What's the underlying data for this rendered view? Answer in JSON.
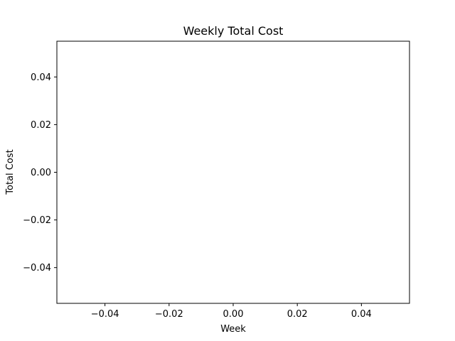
{
  "chart_data": {
    "type": "line",
    "title": "Weekly Total Cost",
    "xlabel": "Week",
    "ylabel": "Total Cost",
    "x": [],
    "series": [
      {
        "values": []
      }
    ],
    "xlim": [
      -0.055,
      0.055
    ],
    "ylim": [
      -0.055,
      0.055
    ],
    "xticks": [
      -0.04,
      -0.02,
      0.0,
      0.02,
      0.04
    ],
    "yticks": [
      -0.04,
      -0.02,
      0.0,
      0.02,
      0.04
    ],
    "xtick_labels": [
      "−0.04",
      "−0.02",
      "0.00",
      "0.02",
      "0.04"
    ],
    "ytick_labels": [
      "−0.04",
      "−0.02",
      "0.00",
      "0.02",
      "0.04"
    ],
    "grid": false,
    "legend": "none",
    "colors": {
      "axes": "#000000",
      "background": "#ffffff"
    }
  }
}
